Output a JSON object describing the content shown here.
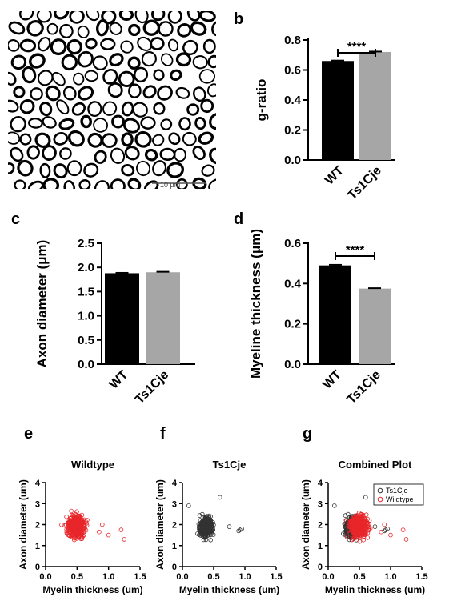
{
  "panel_labels": {
    "a": "a",
    "b": "b",
    "c": "c",
    "d": "d",
    "e": "e",
    "f": "f",
    "g": "g"
  },
  "micrograph": {
    "scale_bar_text": "10 µm"
  },
  "chart_data": [
    {
      "id": "b",
      "type": "bar",
      "categories": [
        "WT",
        "Ts1Cje"
      ],
      "values": [
        0.66,
        0.72
      ],
      "errors": [
        0.003,
        0.003
      ],
      "colors": [
        "#000000",
        "#a6a6a6"
      ],
      "ylabel": "g-ratio",
      "ylim": [
        0,
        0.8
      ],
      "yticks": [
        "0.0",
        "0.2",
        "0.4",
        "0.6",
        "0.8"
      ],
      "significance": "****"
    },
    {
      "id": "c",
      "type": "bar",
      "categories": [
        "WT",
        "Ts1Cje"
      ],
      "values": [
        1.88,
        1.9
      ],
      "errors": [
        0.008,
        0.01
      ],
      "colors": [
        "#000000",
        "#a6a6a6"
      ],
      "ylabel": "Axon diameter (μm)",
      "ylim": [
        0,
        2.5
      ],
      "yticks": [
        "0.0",
        "0.5",
        "1.0",
        "1.5",
        "2.0",
        "2.5"
      ],
      "significance": ""
    },
    {
      "id": "d",
      "type": "bar",
      "categories": [
        "WT",
        "Ts1Cje"
      ],
      "values": [
        0.49,
        0.375
      ],
      "errors": [
        0.003,
        0.002
      ],
      "colors": [
        "#000000",
        "#a6a6a6"
      ],
      "ylabel": "Myeline thickness (μm)",
      "ylim": [
        0,
        0.6
      ],
      "yticks": [
        "0.0",
        "0.2",
        "0.4",
        "0.6"
      ],
      "significance": "****"
    },
    {
      "id": "e",
      "type": "scatter",
      "title": "Wildtype",
      "xlabel": "Myelin thickness (um)",
      "ylabel": "Axon diameter (um)",
      "xlim": [
        0,
        1.5
      ],
      "ylim": [
        0,
        4
      ],
      "xticks": [
        "0.0",
        "0.5",
        "1.0",
        "1.5"
      ],
      "yticks": [
        "0",
        "1",
        "2",
        "3",
        "4"
      ],
      "series": [
        {
          "color": "#e8262a",
          "center": [
            0.49,
            1.9
          ],
          "spread": [
            0.12,
            0.45
          ],
          "count": 420,
          "outliers": [
            [
              1.25,
              1.3
            ],
            [
              1.2,
              1.75
            ],
            [
              1.0,
              1.5
            ],
            [
              0.85,
              1.65
            ],
            [
              0.9,
              2.0
            ]
          ]
        }
      ]
    },
    {
      "id": "f",
      "type": "scatter",
      "title": "Ts1Cje",
      "xlabel": "Myelin thickness (um)",
      "ylabel": "Axon diameter (um)",
      "xlim": [
        0,
        1.5
      ],
      "ylim": [
        0,
        4
      ],
      "xticks": [
        "0.0",
        "0.5",
        "1.0",
        "1.5"
      ],
      "yticks": [
        "0",
        "1",
        "2",
        "3",
        "4"
      ],
      "series": [
        {
          "color": "#333333",
          "center": [
            0.38,
            1.9
          ],
          "spread": [
            0.09,
            0.4
          ],
          "count": 420,
          "outliers": [
            [
              0.9,
              1.7
            ],
            [
              0.95,
              1.8
            ],
            [
              0.92,
              1.75
            ],
            [
              0.75,
              1.9
            ],
            [
              0.6,
              3.3
            ],
            [
              0.1,
              2.9
            ]
          ]
        }
      ]
    },
    {
      "id": "g",
      "type": "scatter",
      "title": "Combined Plot",
      "xlabel": "Myelin thickness (um)",
      "ylabel": "Axon diameter (um)",
      "xlim": [
        0,
        1.5
      ],
      "ylim": [
        0,
        4
      ],
      "xticks": [
        "0.0",
        "0.5",
        "1.0",
        "1.5"
      ],
      "yticks": [
        "0",
        "1",
        "2",
        "3",
        "4"
      ],
      "legend": [
        "Ts1Cje",
        "Wildtype"
      ],
      "legend_position": "top-right",
      "series": [
        {
          "name": "Ts1Cje",
          "color": "#333333",
          "center": [
            0.38,
            1.9
          ],
          "spread": [
            0.09,
            0.4
          ],
          "count": 420,
          "outliers": [
            [
              0.9,
              1.7
            ],
            [
              0.95,
              1.8
            ],
            [
              0.92,
              1.75
            ],
            [
              0.75,
              1.9
            ],
            [
              0.6,
              3.3
            ],
            [
              0.1,
              2.9
            ]
          ]
        },
        {
          "name": "Wildtype",
          "color": "#e8262a",
          "center": [
            0.49,
            1.9
          ],
          "spread": [
            0.12,
            0.45
          ],
          "count": 420,
          "outliers": [
            [
              1.25,
              1.3
            ],
            [
              1.2,
              1.75
            ],
            [
              1.0,
              1.5
            ],
            [
              0.85,
              1.65
            ],
            [
              0.9,
              2.0
            ]
          ]
        }
      ]
    }
  ]
}
